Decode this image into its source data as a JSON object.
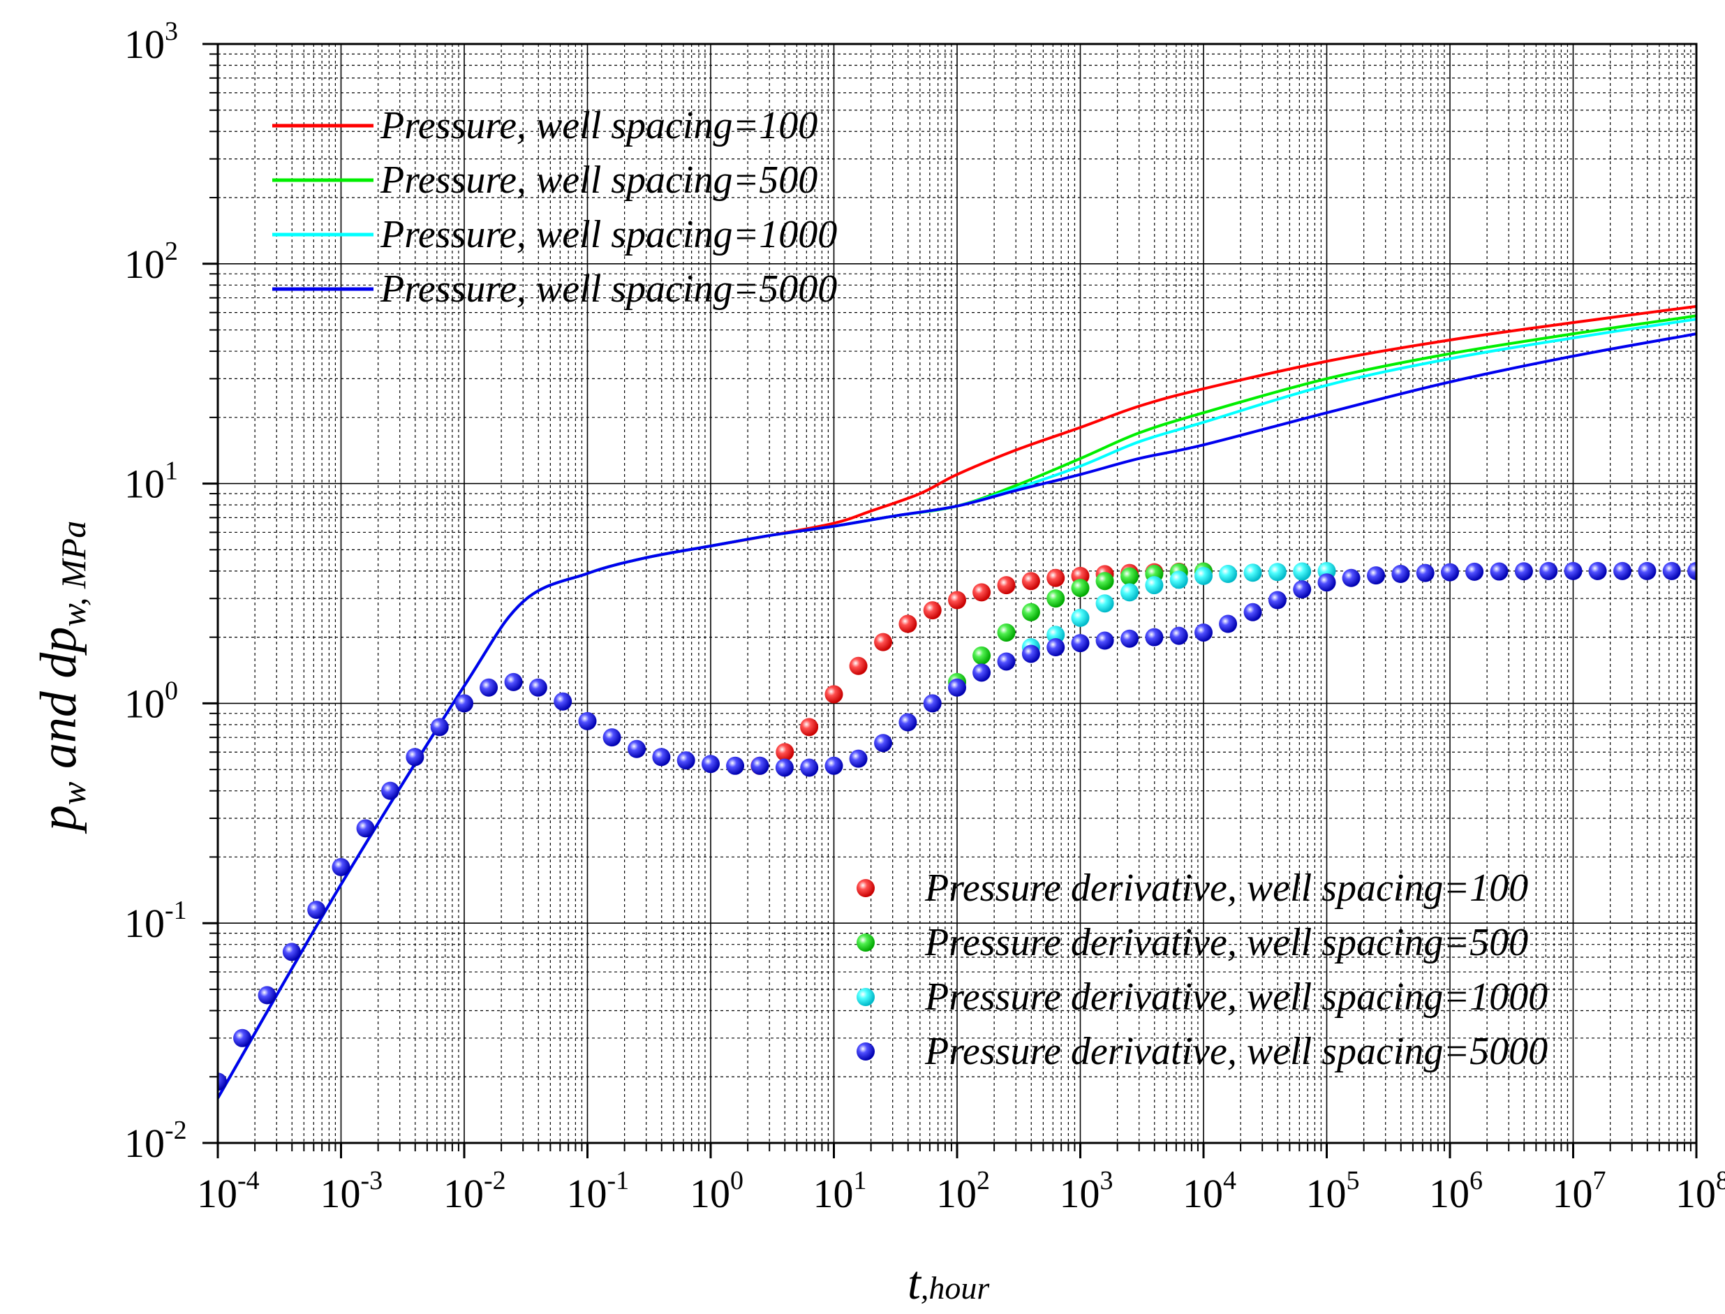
{
  "chart_data": {
    "type": "line",
    "x_scale": "log",
    "y_scale": "log",
    "xlim": [
      0.0001,
      100000000
    ],
    "ylim": [
      0.01,
      1000
    ],
    "grid": true,
    "xlabel": {
      "main": "t",
      "sub": ",hour"
    },
    "ylabel": {
      "p": "p",
      "p_sub": "w",
      "mid": " and d",
      "p2": "p",
      "p2_sub": "w, MPa"
    },
    "x_ticks": [
      {
        "base": "10",
        "exp": "-4",
        "value": 0.0001
      },
      {
        "base": "10",
        "exp": "-3",
        "value": 0.001
      },
      {
        "base": "10",
        "exp": "-2",
        "value": 0.01
      },
      {
        "base": "10",
        "exp": "-1",
        "value": 0.1
      },
      {
        "base": "10",
        "exp": "0",
        "value": 1
      },
      {
        "base": "10",
        "exp": "1",
        "value": 10
      },
      {
        "base": "10",
        "exp": "2",
        "value": 100
      },
      {
        "base": "10",
        "exp": "3",
        "value": 1000
      },
      {
        "base": "10",
        "exp": "4",
        "value": 10000
      },
      {
        "base": "10",
        "exp": "5",
        "value": 100000
      },
      {
        "base": "10",
        "exp": "6",
        "value": 1000000
      },
      {
        "base": "10",
        "exp": "7",
        "value": 10000000
      },
      {
        "base": "10",
        "exp": "8",
        "value": 100000000
      }
    ],
    "y_ticks": [
      {
        "base": "10",
        "exp": "-2",
        "value": 0.01
      },
      {
        "base": "10",
        "exp": "-1",
        "value": 0.1
      },
      {
        "base": "10",
        "exp": "0",
        "value": 1
      },
      {
        "base": "10",
        "exp": "1",
        "value": 10
      },
      {
        "base": "10",
        "exp": "2",
        "value": 100
      },
      {
        "base": "10",
        "exp": "3",
        "value": 1000
      }
    ],
    "legend_lines_position": "top-left",
    "legend_points_position": "bottom-right",
    "line_series": [
      {
        "name": "Pressure, well spacing=100",
        "color": "#ff0000",
        "x": [
          0.0001,
          0.001,
          0.01,
          0.03,
          0.1,
          0.3,
          1,
          3,
          10,
          20,
          50,
          100,
          300,
          1000,
          3000,
          10000,
          100000,
          1000000,
          10000000,
          100000000
        ],
        "y": [
          0.016,
          0.15,
          1.2,
          2.9,
          3.9,
          4.6,
          5.2,
          5.8,
          6.6,
          7.5,
          9.0,
          11.0,
          14.2,
          18.0,
          22.5,
          27.0,
          36.0,
          45.0,
          54.0,
          64.0
        ]
      },
      {
        "name": "Pressure, well spacing=500",
        "color": "#00ee00",
        "x": [
          0.0001,
          0.001,
          0.01,
          0.03,
          0.1,
          0.3,
          1,
          3,
          10,
          30,
          100,
          300,
          1000,
          3000,
          10000,
          100000,
          1000000,
          10000000,
          100000000
        ],
        "y": [
          0.016,
          0.15,
          1.2,
          2.9,
          3.9,
          4.6,
          5.2,
          5.8,
          6.4,
          7.1,
          7.9,
          9.8,
          13.0,
          17.0,
          21.0,
          30.0,
          39.0,
          48.0,
          58.0
        ]
      },
      {
        "name": "Pressure, well spacing=1000",
        "color": "#00ffff",
        "x": [
          0.0001,
          0.001,
          0.01,
          0.03,
          0.1,
          0.3,
          1,
          3,
          10,
          30,
          100,
          300,
          1000,
          3000,
          10000,
          100000,
          1000000,
          10000000,
          100000000
        ],
        "y": [
          0.016,
          0.15,
          1.2,
          2.9,
          3.9,
          4.6,
          5.2,
          5.8,
          6.4,
          7.1,
          7.9,
          9.5,
          12.0,
          15.5,
          19.0,
          28.0,
          37.0,
          46.0,
          56.0
        ]
      },
      {
        "name": "Pressure, well spacing=5000",
        "color": "#0000ee",
        "x": [
          0.0001,
          0.001,
          0.01,
          0.03,
          0.1,
          0.3,
          1,
          3,
          10,
          30,
          100,
          300,
          1000,
          3000,
          10000,
          100000,
          1000000,
          10000000,
          100000000
        ],
        "y": [
          0.016,
          0.15,
          1.2,
          2.9,
          3.9,
          4.6,
          5.2,
          5.8,
          6.4,
          7.1,
          7.9,
          9.3,
          11.0,
          13.0,
          15.0,
          21.0,
          29.0,
          38.0,
          48.0
        ]
      }
    ],
    "point_series": [
      {
        "name": "Pressure derivative, well spacing=100",
        "color": "#ff0000",
        "x": [
          2.5,
          4.0,
          6.3,
          10,
          15.8,
          25.1,
          39.8,
          63.1,
          100,
          158,
          251,
          398,
          631,
          1000,
          1580,
          2510,
          3980,
          6310,
          10000
        ],
        "y": [
          0.52,
          0.6,
          0.78,
          1.1,
          1.48,
          1.9,
          2.3,
          2.65,
          2.95,
          3.2,
          3.45,
          3.6,
          3.72,
          3.8,
          3.87,
          3.92,
          3.95,
          3.97,
          3.98
        ]
      },
      {
        "name": "Pressure derivative, well spacing=500",
        "color": "#00dd00",
        "x": [
          100,
          158,
          251,
          398,
          631,
          1000,
          1580,
          2510,
          3980,
          6310,
          10000
        ],
        "y": [
          1.25,
          1.65,
          2.1,
          2.6,
          3.0,
          3.35,
          3.6,
          3.78,
          3.88,
          3.95,
          3.98
        ]
      },
      {
        "name": "Pressure derivative, well spacing=1000",
        "color": "#00eeee",
        "x": [
          398,
          631,
          1000,
          1580,
          2510,
          3980,
          6310,
          10000,
          15800,
          25100,
          39800,
          63100,
          100000
        ],
        "y": [
          1.8,
          2.05,
          2.45,
          2.85,
          3.2,
          3.45,
          3.65,
          3.8,
          3.88,
          3.93,
          3.96,
          3.98,
          4.0
        ]
      },
      {
        "name": "Pressure derivative, well spacing=5000",
        "color": "#0000dd",
        "x": [
          0.0001,
          0.000158,
          0.000251,
          0.000398,
          0.000631,
          0.001,
          0.00158,
          0.00251,
          0.00398,
          0.00631,
          0.01,
          0.0158,
          0.0251,
          0.0398,
          0.0631,
          0.1,
          0.158,
          0.251,
          0.398,
          0.631,
          1,
          1.58,
          2.51,
          3.98,
          6.31,
          10,
          15.8,
          25.1,
          39.8,
          63.1,
          100,
          158,
          251,
          398,
          631,
          1000,
          1580,
          2510,
          3980,
          6310,
          10000,
          15800,
          25100,
          39800,
          63100,
          100000,
          158000,
          251000,
          398000,
          631000,
          1000000,
          1580000,
          2510000,
          3980000,
          6310000,
          10000000,
          15800000,
          25100000,
          39800000,
          63100000,
          100000000
        ],
        "y": [
          0.019,
          0.03,
          0.047,
          0.074,
          0.115,
          0.18,
          0.27,
          0.4,
          0.57,
          0.78,
          1.0,
          1.18,
          1.25,
          1.18,
          1.02,
          0.83,
          0.7,
          0.62,
          0.57,
          0.55,
          0.53,
          0.52,
          0.52,
          0.51,
          0.51,
          0.52,
          0.56,
          0.66,
          0.82,
          1.0,
          1.18,
          1.38,
          1.55,
          1.68,
          1.8,
          1.88,
          1.93,
          1.97,
          2.0,
          2.03,
          2.1,
          2.3,
          2.6,
          2.95,
          3.3,
          3.55,
          3.72,
          3.82,
          3.88,
          3.92,
          3.95,
          3.97,
          3.98,
          3.99,
          4.0,
          4.0,
          4.0,
          4.0,
          4.0,
          4.0,
          4.0
        ]
      }
    ]
  }
}
